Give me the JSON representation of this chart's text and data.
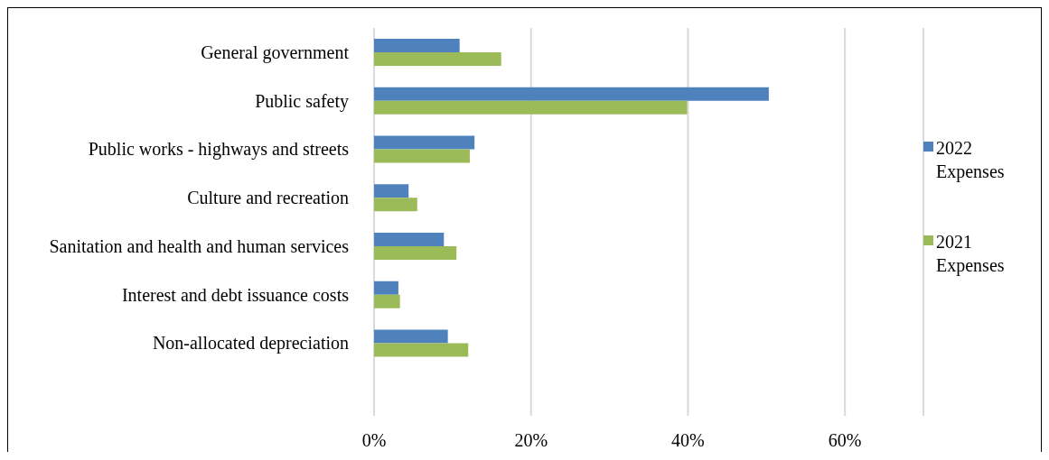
{
  "chart_data": {
    "type": "bar",
    "orientation": "horizontal",
    "categories": [
      "General government",
      "Public safety",
      "Public works - highways and streets",
      "Culture and recreation",
      "Sanitation and health and human services",
      "Interest and debt issuance costs",
      "Non-allocated depreciation",
      null
    ],
    "series": [
      {
        "name": "2022 Expenses",
        "color": "#4f81bd",
        "values": [
          10.9,
          50.3,
          12.8,
          4.4,
          8.9,
          3.1,
          9.4,
          null
        ]
      },
      {
        "name": "2021 Expenses",
        "color": "#9bbb59",
        "values": [
          16.2,
          39.9,
          12.2,
          5.5,
          10.5,
          3.3,
          12.0,
          null
        ]
      }
    ],
    "xlim": [
      0,
      70
    ],
    "xticks": [
      {
        "value": 0,
        "label": "0%"
      },
      {
        "value": 20,
        "label": "20%"
      },
      {
        "value": 40,
        "label": "40%"
      },
      {
        "value": 60,
        "label": "60%"
      }
    ],
    "grid": "x",
    "legend": "right"
  }
}
